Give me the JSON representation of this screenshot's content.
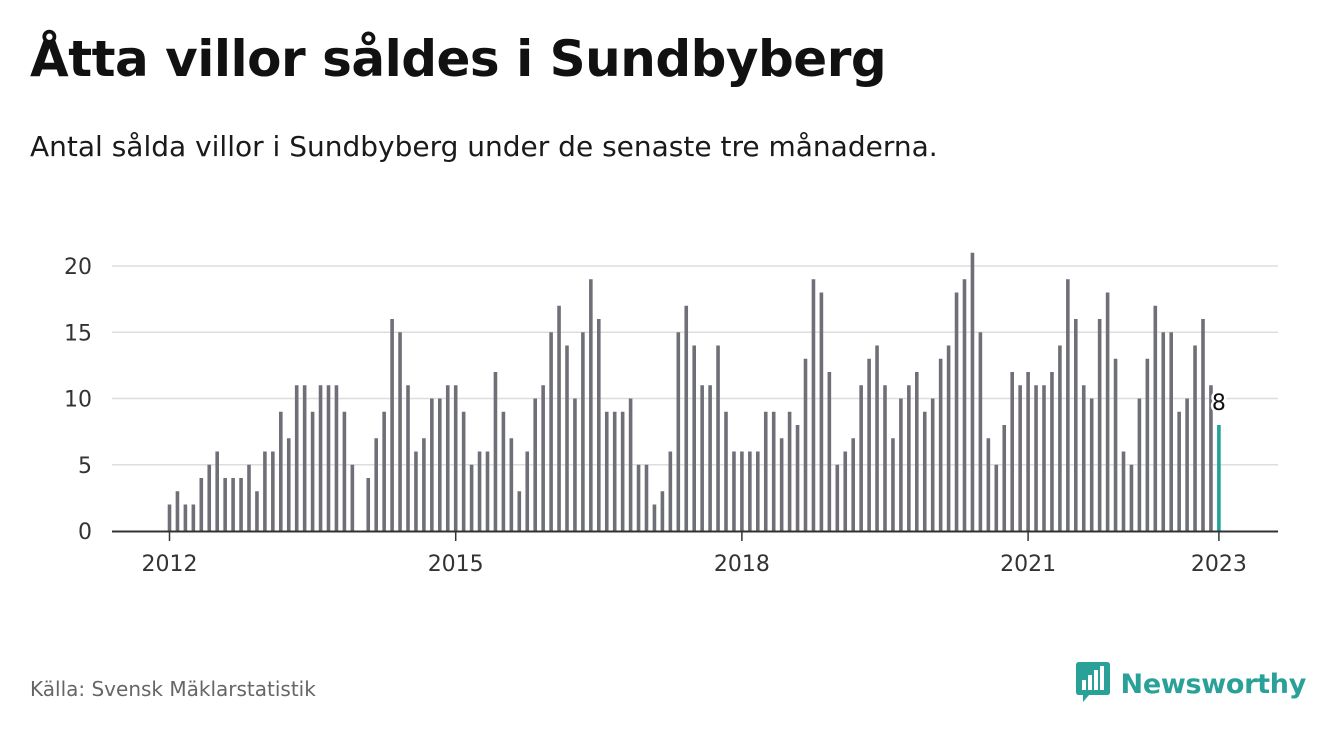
{
  "title": "Åtta villor såldes i Sundbyberg",
  "subtitle": "Antal sålda villor i Sundbyberg under de senaste tre månaderna.",
  "source": "Källa: Svensk Mäklarstatistik",
  "brand": {
    "name": "Newsworthy",
    "icon": "newsworthy-logo-icon",
    "color": "#2aa198"
  },
  "colors": {
    "bar": "#6f6f77",
    "highlight": "#21a39a",
    "grid": "#dddddd",
    "axis": "#333333"
  },
  "chart_data": {
    "type": "bar",
    "title": "",
    "xlabel": "",
    "ylabel": "",
    "ylim": [
      0,
      20
    ],
    "yticks": [
      0,
      5,
      10,
      15,
      20
    ],
    "xtick_labels": [
      "2012",
      "2015",
      "2018",
      "2021",
      "2023"
    ],
    "grid": true,
    "highlight": {
      "x": "2023-01",
      "value": 8,
      "label": "8"
    },
    "x": [
      "2012-01",
      "2012-02",
      "2012-03",
      "2012-04",
      "2012-05",
      "2012-06",
      "2012-07",
      "2012-08",
      "2012-09",
      "2012-10",
      "2012-11",
      "2012-12",
      "2013-01",
      "2013-02",
      "2013-03",
      "2013-04",
      "2013-05",
      "2013-06",
      "2013-07",
      "2013-08",
      "2013-09",
      "2013-10",
      "2013-11",
      "2013-12",
      "2014-01",
      "2014-02",
      "2014-03",
      "2014-04",
      "2014-05",
      "2014-06",
      "2014-07",
      "2014-08",
      "2014-09",
      "2014-10",
      "2014-11",
      "2014-12",
      "2015-01",
      "2015-02",
      "2015-03",
      "2015-04",
      "2015-05",
      "2015-06",
      "2015-07",
      "2015-08",
      "2015-09",
      "2015-10",
      "2015-11",
      "2015-12",
      "2016-01",
      "2016-02",
      "2016-03",
      "2016-04",
      "2016-05",
      "2016-06",
      "2016-07",
      "2016-08",
      "2016-09",
      "2016-10",
      "2016-11",
      "2016-12",
      "2017-01",
      "2017-02",
      "2017-03",
      "2017-04",
      "2017-05",
      "2017-06",
      "2017-07",
      "2017-08",
      "2017-09",
      "2017-10",
      "2017-11",
      "2017-12",
      "2018-01",
      "2018-02",
      "2018-03",
      "2018-04",
      "2018-05",
      "2018-06",
      "2018-07",
      "2018-08",
      "2018-09",
      "2018-10",
      "2018-11",
      "2018-12",
      "2019-01",
      "2019-02",
      "2019-03",
      "2019-04",
      "2019-05",
      "2019-06",
      "2019-07",
      "2019-08",
      "2019-09",
      "2019-10",
      "2019-11",
      "2019-12",
      "2020-01",
      "2020-02",
      "2020-03",
      "2020-04",
      "2020-05",
      "2020-06",
      "2020-07",
      "2020-08",
      "2020-09",
      "2020-10",
      "2020-11",
      "2020-12",
      "2021-01",
      "2021-02",
      "2021-03",
      "2021-04",
      "2021-05",
      "2021-06",
      "2021-07",
      "2021-08",
      "2021-09",
      "2021-10",
      "2021-11",
      "2021-12",
      "2022-01",
      "2022-02",
      "2022-03",
      "2022-04",
      "2022-05",
      "2022-06",
      "2022-07",
      "2022-08",
      "2022-09",
      "2022-10",
      "2022-11",
      "2022-12",
      "2023-01"
    ],
    "values": [
      2,
      3,
      2,
      2,
      4,
      5,
      6,
      4,
      4,
      4,
      5,
      3,
      6,
      6,
      9,
      7,
      11,
      11,
      9,
      11,
      11,
      11,
      9,
      5,
      0,
      4,
      7,
      9,
      16,
      15,
      11,
      6,
      7,
      10,
      10,
      11,
      11,
      9,
      5,
      6,
      6,
      12,
      9,
      7,
      3,
      6,
      10,
      11,
      15,
      17,
      14,
      10,
      15,
      19,
      16,
      9,
      9,
      9,
      10,
      5,
      5,
      2,
      3,
      6,
      15,
      17,
      14,
      11,
      11,
      14,
      9,
      6,
      6,
      6,
      6,
      9,
      9,
      7,
      9,
      8,
      13,
      19,
      18,
      12,
      5,
      6,
      7,
      11,
      13,
      14,
      11,
      7,
      10,
      11,
      12,
      9,
      10,
      13,
      14,
      18,
      19,
      21,
      15,
      7,
      5,
      8,
      12,
      11,
      12,
      11,
      11,
      12,
      14,
      19,
      16,
      11,
      10,
      16,
      18,
      13,
      6,
      5,
      10,
      13,
      17,
      15,
      15,
      9,
      10,
      14,
      16,
      11,
      8
    ]
  }
}
